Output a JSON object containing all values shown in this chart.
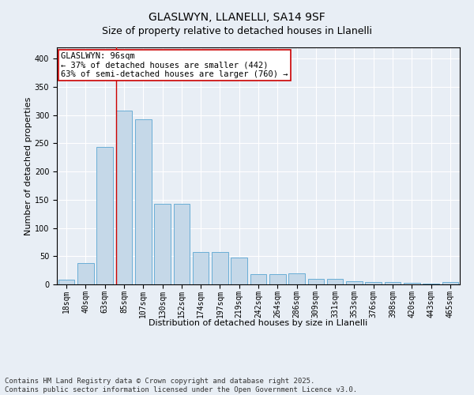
{
  "title": "GLASLWYN, LLANELLI, SA14 9SF",
  "subtitle": "Size of property relative to detached houses in Llanelli",
  "xlabel": "Distribution of detached houses by size in Llanelli",
  "ylabel": "Number of detached properties",
  "categories": [
    "18sqm",
    "40sqm",
    "63sqm",
    "85sqm",
    "107sqm",
    "130sqm",
    "152sqm",
    "174sqm",
    "197sqm",
    "219sqm",
    "242sqm",
    "264sqm",
    "286sqm",
    "309sqm",
    "331sqm",
    "353sqm",
    "376sqm",
    "398sqm",
    "420sqm",
    "443sqm",
    "465sqm"
  ],
  "values": [
    8,
    38,
    243,
    308,
    293,
    143,
    143,
    57,
    57,
    47,
    18,
    18,
    20,
    10,
    10,
    6,
    4,
    4,
    3,
    1,
    4
  ],
  "bar_color": "#c5d8e8",
  "bar_edge_color": "#6aaed6",
  "vline_bar_index": 3,
  "vline_color": "#cc0000",
  "annotation_text": "GLASLWYN: 96sqm\n← 37% of detached houses are smaller (442)\n63% of semi-detached houses are larger (760) →",
  "annotation_box_facecolor": "#ffffff",
  "annotation_box_edgecolor": "#cc0000",
  "ylim": [
    0,
    420
  ],
  "yticks": [
    0,
    50,
    100,
    150,
    200,
    250,
    300,
    350,
    400
  ],
  "background_color": "#e8eef5",
  "plot_bg_color": "#e8eef5",
  "footer": "Contains HM Land Registry data © Crown copyright and database right 2025.\nContains public sector information licensed under the Open Government Licence v3.0.",
  "title_fontsize": 10,
  "subtitle_fontsize": 9,
  "xlabel_fontsize": 8,
  "ylabel_fontsize": 8,
  "tick_fontsize": 7,
  "annotation_fontsize": 7.5,
  "footer_fontsize": 6.5
}
